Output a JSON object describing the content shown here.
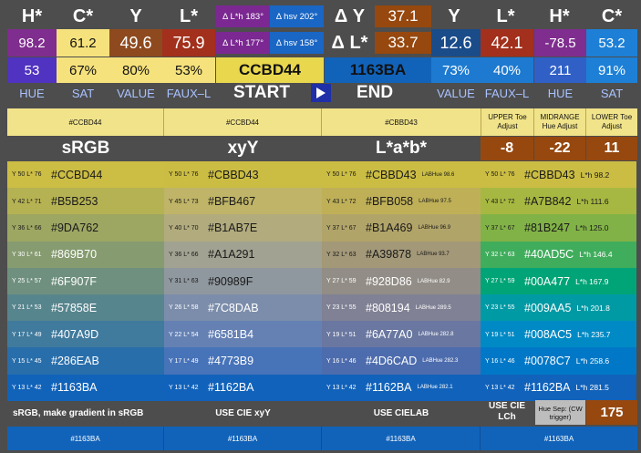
{
  "start": {
    "header_labels": [
      "H*",
      "C*",
      "Y",
      "L*"
    ],
    "values": [
      "98.2",
      "61.2",
      "49.6",
      "75.9"
    ],
    "bottom_values": [
      "53",
      "67%",
      "80%",
      "53%"
    ],
    "axis_labels": [
      "HUE",
      "SAT",
      "VALUE",
      "FAUX–L"
    ],
    "hex": "CCBD44",
    "button_label": "START"
  },
  "end": {
    "header_labels": [
      "Y",
      "L*",
      "H*",
      "C*"
    ],
    "values": [
      "12.6",
      "42.1",
      "-78.5",
      "53.2"
    ],
    "bottom_values": [
      "73%",
      "40%",
      "211",
      "91%"
    ],
    "axis_labels": [
      "VALUE",
      "FAUX–L",
      "HUE",
      "SAT"
    ],
    "hex": "1163BA",
    "button_label": "END"
  },
  "deltas": {
    "dlh_top": "Δ L*h 183°",
    "dhsv_top": "Δ hsv 202°",
    "dlh_bottom": "Δ L*h 177°",
    "dhsv_bottom": "Δ hsv 158°",
    "dy_label": "Δ Y",
    "dy_value": "37.1",
    "dl_label": "Δ L*",
    "dl_value": "33.7"
  },
  "columns": {
    "top_hex": [
      "#CCBD44",
      "#CCBD44",
      "#CBBD43"
    ],
    "titles": [
      "sRGB",
      "xyY",
      "L*a*b*"
    ],
    "adjust_labels": [
      "UPPER Toe Adjust",
      "MIDRANGE Hue Adjust",
      "LOWER Toe Adjust"
    ],
    "adjust_values": [
      "-8",
      "-22",
      "11"
    ]
  },
  "rows": [
    {
      "srgb": {
        "ann": "Y 50  L* 76",
        "hex": "#CCBD44",
        "color": "#CCBD44"
      },
      "xyy": {
        "ann": "Y 50  L* 76",
        "hex": "#CBBD43",
        "color": "#CBBD43"
      },
      "lab": {
        "ann": "Y 50  L* 76",
        "hex": "#CBBD43",
        "hue": "LABHue 98.6",
        "color": "#CBBD43"
      },
      "lch": {
        "ann": "Y 50  L* 76",
        "hex": "#CBBD43",
        "lh": "L*h 98.2",
        "color": "#CBBD43"
      }
    },
    {
      "srgb": {
        "ann": "Y 42  L* 71",
        "hex": "#B5B253",
        "color": "#B5B253"
      },
      "xyy": {
        "ann": "Y 45  L* 73",
        "hex": "#BFB467",
        "color": "#BFB467"
      },
      "lab": {
        "ann": "Y 43  L* 72",
        "hex": "#BFB058",
        "hue": "LABHue 97.5",
        "color": "#BFB058"
      },
      "lch": {
        "ann": "Y 43  L* 72",
        "hex": "#A7B842",
        "lh": "L*h 111.6",
        "color": "#A7B842"
      }
    },
    {
      "srgb": {
        "ann": "Y 36  L* 66",
        "hex": "#9DA762",
        "color": "#9DA762"
      },
      "xyy": {
        "ann": "Y 40  L* 70",
        "hex": "#B1AB7E",
        "color": "#B1AB7E"
      },
      "lab": {
        "ann": "Y 37  L* 67",
        "hex": "#B1A469",
        "hue": "LABHue 96.9",
        "color": "#B1A469"
      },
      "lch": {
        "ann": "Y 37  L* 67",
        "hex": "#81B247",
        "lh": "L*h 125.0",
        "color": "#81B247"
      }
    },
    {
      "srgb": {
        "ann": "Y 30  L* 61",
        "hex": "#869B70",
        "color": "#869B70"
      },
      "xyy": {
        "ann": "Y 36  L* 66",
        "hex": "#A1A291",
        "color": "#A1A291"
      },
      "lab": {
        "ann": "Y 32  L* 63",
        "hex": "#A39878",
        "hue": "LABHue 93.7",
        "color": "#A39878"
      },
      "lch": {
        "ann": "Y 32  L* 63",
        "hex": "#40AD5C",
        "lh": "L*h 146.4",
        "color": "#40AD5C"
      }
    },
    {
      "srgb": {
        "ann": "Y 25  L* 57",
        "hex": "#6F907F",
        "color": "#6F907F"
      },
      "xyy": {
        "ann": "Y 31  L* 63",
        "hex": "#90989F",
        "color": "#90989F"
      },
      "lab": {
        "ann": "Y 27  L* 59",
        "hex": "#928D86",
        "hue": "LABHue 82.9",
        "color": "#928D86"
      },
      "lch": {
        "ann": "Y 27  L* 59",
        "hex": "#00A477",
        "lh": "L*h 167.9",
        "color": "#00A477"
      }
    },
    {
      "srgb": {
        "ann": "Y 21  L* 53",
        "hex": "#57858E",
        "color": "#57858E"
      },
      "xyy": {
        "ann": "Y 26  L* 58",
        "hex": "#7C8DAB",
        "color": "#7C8DAB"
      },
      "lab": {
        "ann": "Y 23  L* 55",
        "hex": "#808194",
        "hue": "LABHue 289.5",
        "color": "#808194"
      },
      "lch": {
        "ann": "Y 23  L* 55",
        "hex": "#009AA5",
        "lh": "L*h 201.8",
        "color": "#009AA5"
      }
    },
    {
      "srgb": {
        "ann": "Y 17  L* 49",
        "hex": "#407A9D",
        "color": "#407A9D"
      },
      "xyy": {
        "ann": "Y 22  L* 54",
        "hex": "#6581B4",
        "color": "#6581B4"
      },
      "lab": {
        "ann": "Y 19  L* 51",
        "hex": "#6A77A0",
        "hue": "LABHue 282.8",
        "color": "#6A77A0"
      },
      "lch": {
        "ann": "Y 19  L* 51",
        "hex": "#008AC5",
        "lh": "L*h 235.7",
        "color": "#008AC5"
      }
    },
    {
      "srgb": {
        "ann": "Y 15  L* 45",
        "hex": "#286EAB",
        "color": "#286EAB"
      },
      "xyy": {
        "ann": "Y 17  L* 49",
        "hex": "#4773B9",
        "color": "#4773B9"
      },
      "lab": {
        "ann": "Y 16  L* 46",
        "hex": "#4D6CAD",
        "hue": "LABHue 282.3",
        "color": "#4D6CAD"
      },
      "lch": {
        "ann": "Y 16  L* 46",
        "hex": "#0078C7",
        "lh": "L*h 258.6",
        "color": "#0078C7"
      }
    },
    {
      "srgb": {
        "ann": "Y 13  L* 42",
        "hex": "#1163BA",
        "color": "#1163BA"
      },
      "xyy": {
        "ann": "Y 13  L* 42",
        "hex": "#1162BA",
        "color": "#1162BA"
      },
      "lab": {
        "ann": "Y 13  L* 42",
        "hex": "#1162BA",
        "hue": "LABHue 282.1",
        "color": "#1162BA"
      },
      "lch": {
        "ann": "Y 13  L* 42",
        "hex": "#1162BA",
        "lh": "L*h 281.5",
        "color": "#1162BA"
      }
    }
  ],
  "footer": {
    "buttons": [
      "sRGB, make gradient in  sRGB",
      "USE CIE xyY",
      "USE CIELAB",
      "USE CIE LCh"
    ],
    "hue_sep_label": "Hue Sep: (CW trigger)",
    "hue_sep_value": "175",
    "bottom_hex": [
      "#1163BA",
      "#1163BA",
      "#1163BA",
      "#1163BA"
    ]
  },
  "colors": {
    "hue_bg": "#7f2d8e",
    "sat_bg": "#f6e27c",
    "value_bg": "#8e4a1e",
    "faux_bg": "#a2301c",
    "purple": "#7b2892",
    "blue_bar": "#1a66c4",
    "end_hue_bg": "#3060c6",
    "end_sat_bg": "#1d80d6",
    "orange": "#96480f",
    "yellow_header": "#f1e38a"
  }
}
